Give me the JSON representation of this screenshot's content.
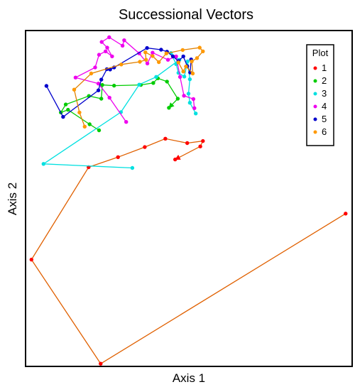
{
  "chart_data": {
    "type": "line",
    "title": "Successional Vectors",
    "xlabel": "Axis 1",
    "ylabel": "Axis 2",
    "xlim": [
      0,
      100
    ],
    "ylim": [
      0,
      100
    ],
    "grid": false,
    "legend": {
      "title": "Plot",
      "placement": "top-right"
    },
    "series": [
      {
        "name": "1",
        "color": "#ff0000",
        "line_color": "#e06000",
        "points": [
          [
            98,
            45.5
          ],
          [
            23,
            0.8
          ],
          [
            1.8,
            31.8
          ],
          [
            19.3,
            59.3
          ],
          [
            28.3,
            62.3
          ],
          [
            36.5,
            65.3
          ],
          [
            42.8,
            67.8
          ],
          [
            49.5,
            66.5
          ],
          [
            54.3,
            67.1
          ],
          [
            53.5,
            65.5
          ],
          [
            45.8,
            61.6
          ]
        ]
      },
      {
        "name": "2",
        "color": "#00cc00",
        "line_color": "#00cc00",
        "points": [
          [
            22.5,
            70.3
          ],
          [
            19.6,
            72.1
          ],
          [
            13,
            76.4
          ],
          [
            10.8,
            75.6
          ],
          [
            12.3,
            78
          ],
          [
            19.4,
            80.5
          ],
          [
            23.2,
            79.7
          ],
          [
            23.5,
            83.8
          ],
          [
            27.1,
            83.6
          ],
          [
            35.3,
            83.8
          ],
          [
            39.1,
            84.4
          ],
          [
            40.5,
            85.8
          ],
          [
            43.3,
            84.8
          ],
          [
            46.6,
            79.7
          ],
          [
            43.9,
            77
          ]
        ]
      },
      {
        "name": "3",
        "color": "#00e0e0",
        "line_color": "#00e0e0",
        "points": [
          [
            32.7,
            59.1
          ],
          [
            5.5,
            60.3
          ],
          [
            29.2,
            75.7
          ],
          [
            34.8,
            83.9
          ],
          [
            40,
            86.2
          ],
          [
            47.1,
            91.3
          ],
          [
            44.5,
            93.3
          ],
          [
            46.1,
            90
          ],
          [
            46.8,
            87.4
          ],
          [
            48.6,
            86.3
          ],
          [
            49.6,
            90.8
          ],
          [
            50.3,
            85.5
          ],
          [
            49.9,
            81.2
          ],
          [
            50.3,
            78.5
          ],
          [
            52.1,
            75.3
          ]
        ]
      },
      {
        "name": "4",
        "color": "#ee00ee",
        "line_color": "#ee00ee",
        "points": [
          [
            30.8,
            72.8
          ],
          [
            25.7,
            80
          ],
          [
            22.3,
            84.2
          ],
          [
            15.3,
            86
          ],
          [
            21.3,
            89
          ],
          [
            22.5,
            92.8
          ],
          [
            24.5,
            93.8
          ],
          [
            26.5,
            92.3
          ],
          [
            25,
            94.9
          ],
          [
            23.3,
            96.6
          ],
          [
            25.6,
            98
          ],
          [
            29.7,
            95.5
          ],
          [
            30.2,
            97.1
          ],
          [
            34.8,
            93.2
          ],
          [
            37.3,
            90.2
          ],
          [
            38.9,
            93.4
          ],
          [
            43.6,
            91.3
          ],
          [
            46.1,
            92.3
          ],
          [
            47.3,
            86.2
          ],
          [
            48.5,
            80.6
          ],
          [
            51.4,
            79.6
          ],
          [
            51.7,
            76.9
          ]
        ]
      },
      {
        "name": "5",
        "color": "#0000cc",
        "line_color": "#0000cc",
        "points": [
          [
            6.4,
            83.5
          ],
          [
            11.5,
            74.3
          ],
          [
            22.3,
            82.2
          ],
          [
            23.2,
            85.4
          ],
          [
            24.9,
            88.5
          ],
          [
            25.9,
            88.4
          ],
          [
            27.1,
            89
          ],
          [
            37.2,
            94.8
          ],
          [
            41.5,
            94.3
          ],
          [
            43.3,
            93.7
          ],
          [
            45.1,
            92.3
          ],
          [
            46.8,
            90.9
          ],
          [
            48.3,
            92.3
          ],
          [
            49.5,
            89.4
          ],
          [
            50.4,
            87.5
          ],
          [
            50.7,
            91.4
          ]
        ]
      },
      {
        "name": "6",
        "color": "#ff9900",
        "line_color": "#e08000",
        "points": [
          [
            18.1,
            71.4
          ],
          [
            16.5,
            75.6
          ],
          [
            14.9,
            82.4
          ],
          [
            20.1,
            87.2
          ],
          [
            29.3,
            89.9
          ],
          [
            35,
            90.7
          ],
          [
            36.9,
            91.3
          ],
          [
            36.7,
            93.5
          ],
          [
            38.9,
            92.4
          ],
          [
            40.8,
            90.6
          ],
          [
            43.1,
            93.2
          ],
          [
            48.1,
            94.2
          ],
          [
            53.3,
            94.9
          ],
          [
            54.3,
            93.8
          ],
          [
            52.5,
            91.8
          ],
          [
            50.9,
            90.8
          ],
          [
            51.2,
            87.2
          ],
          [
            49.1,
            89.3
          ],
          [
            48.3,
            87.8
          ],
          [
            46.8,
            90.5
          ]
        ]
      }
    ]
  }
}
